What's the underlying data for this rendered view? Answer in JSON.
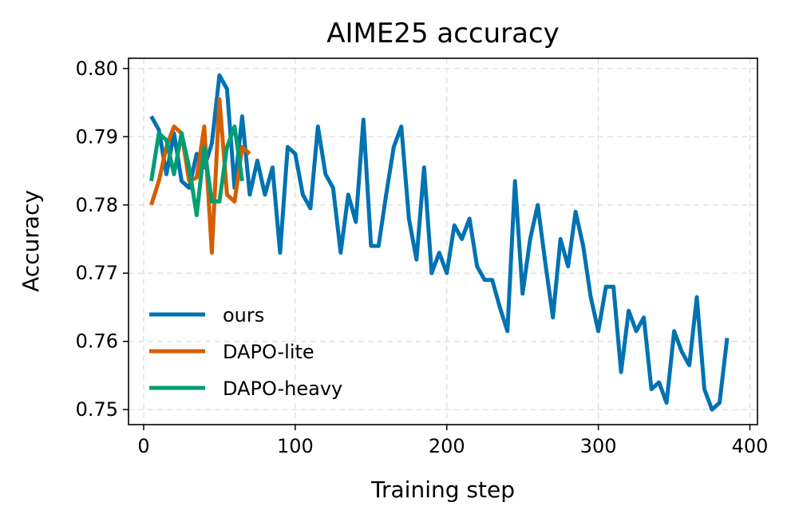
{
  "chart_data": {
    "type": "line",
    "title": "AIME25 accuracy",
    "xlabel": "Training step",
    "ylabel": "Accuracy",
    "xlim": [
      -10,
      405
    ],
    "ylim": [
      0.7478,
      0.8015
    ],
    "x_ticks": [
      0,
      100,
      200,
      300,
      400
    ],
    "x_tick_labels": [
      "0",
      "100",
      "200",
      "300",
      "400"
    ],
    "y_ticks": [
      0.75,
      0.76,
      0.77,
      0.78,
      0.79,
      0.8
    ],
    "y_tick_labels": [
      "0.75",
      "0.76",
      "0.77",
      "0.78",
      "0.79",
      "0.80"
    ],
    "grid": true,
    "legend_position": "lower-left",
    "series": [
      {
        "name": "ours",
        "color": "#0072B2",
        "x": [
          5,
          10,
          15,
          20,
          25,
          30,
          35,
          40,
          45,
          50,
          55,
          60,
          65,
          70,
          75,
          80,
          85,
          90,
          95,
          100,
          105,
          110,
          115,
          120,
          125,
          130,
          135,
          140,
          145,
          150,
          155,
          160,
          165,
          170,
          175,
          180,
          185,
          190,
          195,
          200,
          205,
          210,
          215,
          220,
          225,
          230,
          235,
          240,
          245,
          250,
          255,
          260,
          265,
          270,
          275,
          280,
          285,
          290,
          295,
          300,
          305,
          310,
          315,
          320,
          325,
          330,
          335,
          340,
          345,
          350,
          355,
          360,
          365,
          370,
          375,
          380,
          385
        ],
        "y": [
          0.793,
          0.791,
          0.7845,
          0.7905,
          0.7835,
          0.7825,
          0.7875,
          0.7855,
          0.789,
          0.799,
          0.797,
          0.7825,
          0.793,
          0.7815,
          0.7865,
          0.7815,
          0.7855,
          0.773,
          0.7885,
          0.7875,
          0.7815,
          0.7795,
          0.7915,
          0.7845,
          0.7825,
          0.773,
          0.7815,
          0.7775,
          0.7925,
          0.774,
          0.774,
          0.7815,
          0.7885,
          0.7915,
          0.778,
          0.772,
          0.7855,
          0.77,
          0.773,
          0.77,
          0.777,
          0.775,
          0.778,
          0.771,
          0.769,
          0.769,
          0.765,
          0.7615,
          0.7835,
          0.767,
          0.775,
          0.78,
          0.7715,
          0.7635,
          0.775,
          0.771,
          0.779,
          0.774,
          0.7665,
          0.7615,
          0.768,
          0.768,
          0.7555,
          0.7645,
          0.7615,
          0.7635,
          0.753,
          0.754,
          0.751,
          0.7615,
          0.7585,
          0.7565,
          0.7665,
          0.753,
          0.75,
          0.751,
          0.7605
        ]
      },
      {
        "name": "DAPO-lite",
        "color": "#D55E00",
        "x": [
          5,
          10,
          15,
          20,
          25,
          30,
          35,
          40,
          45,
          50,
          55,
          60,
          65,
          70
        ],
        "y": [
          0.78,
          0.7835,
          0.7885,
          0.7915,
          0.7905,
          0.7835,
          0.784,
          0.7915,
          0.773,
          0.7955,
          0.7815,
          0.7805,
          0.7885,
          0.7875
        ]
      },
      {
        "name": "DAPO-heavy",
        "color": "#009E73",
        "x": [
          5,
          10,
          15,
          20,
          25,
          30,
          35,
          40,
          45,
          50,
          55,
          60,
          65
        ],
        "y": [
          0.7835,
          0.7905,
          0.7895,
          0.7845,
          0.7905,
          0.7855,
          0.7785,
          0.7885,
          0.7805,
          0.7805,
          0.7885,
          0.7915,
          0.7835
        ]
      }
    ]
  }
}
